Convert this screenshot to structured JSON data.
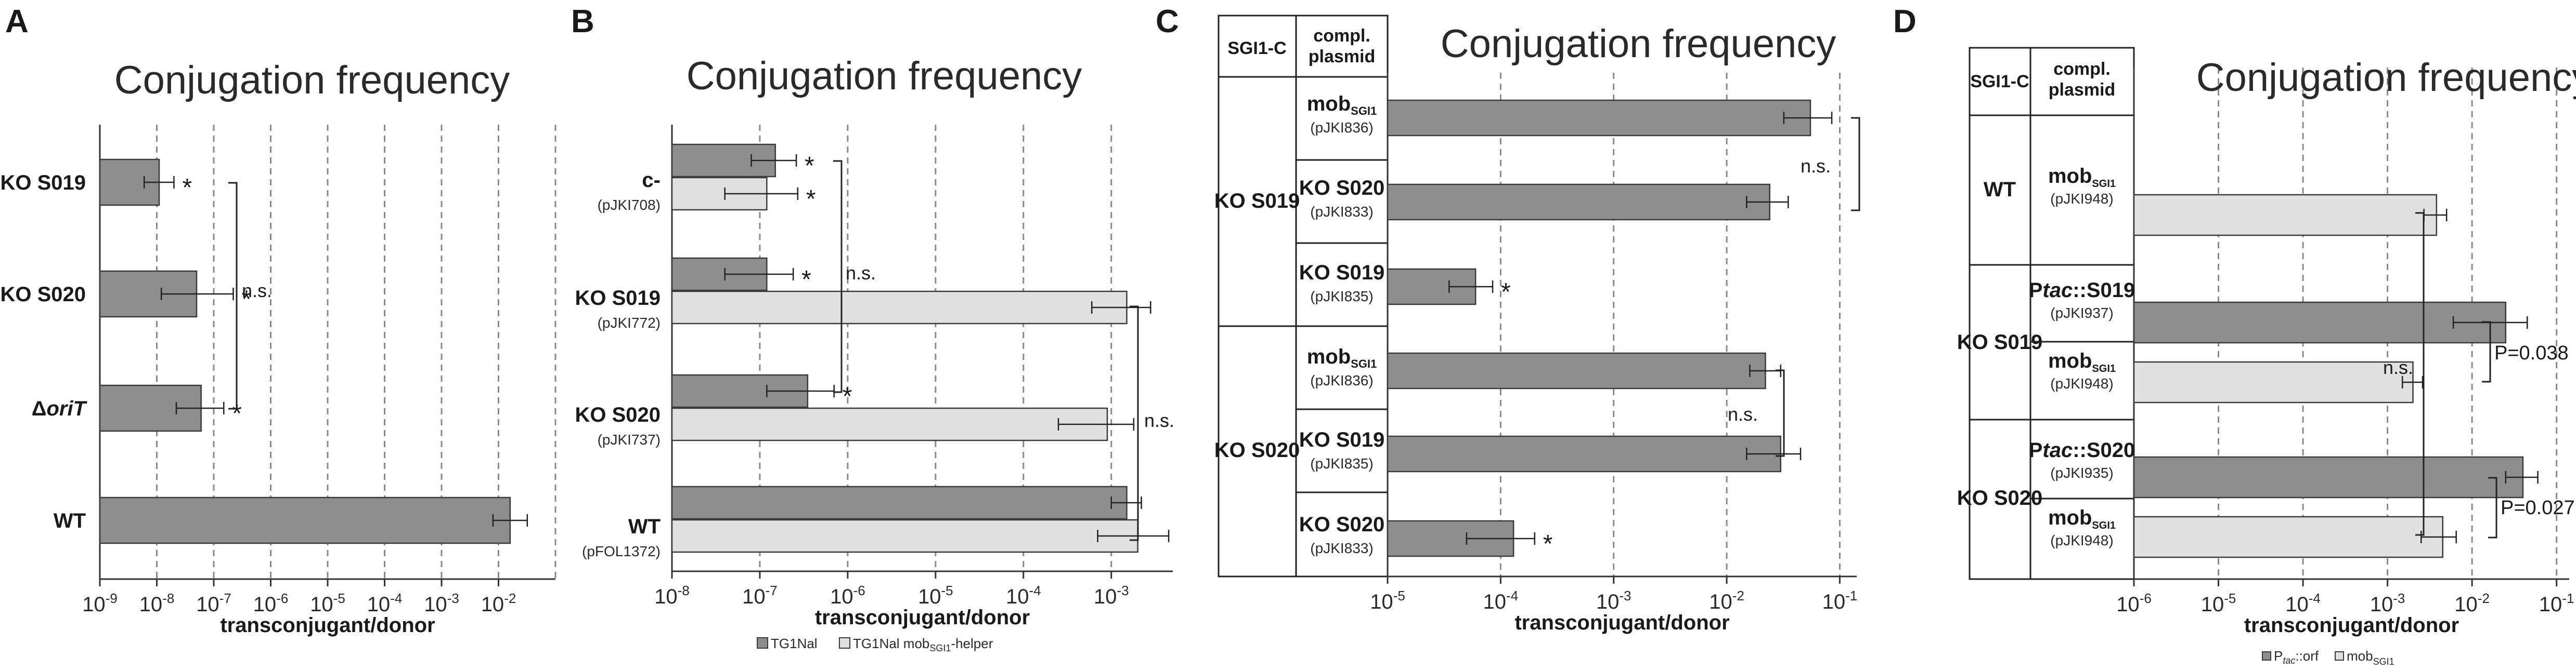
{
  "colors": {
    "dark_bar": "#8e8e8e",
    "light_bar": "#e1e1e1",
    "bar_stroke": "#3a3a3a",
    "axis": "#333333",
    "grid": "#8a8a8a"
  },
  "chart_data": [
    {
      "panel": "A",
      "type": "bar",
      "orientation": "horizontal",
      "x_scale": "log10",
      "title": "Conjugation frequency",
      "xlabel": "transconjugant/donor",
      "xlim_exp": [
        -9,
        -1
      ],
      "tick_labels": [
        "10-9",
        "10-8",
        "10-7",
        "10-6",
        "10-5",
        "10-4",
        "10-3",
        "10-2"
      ],
      "rows": [
        {
          "label": "KO S019",
          "bars": [
            {
              "series": "dark",
              "value": 1.1e-08,
              "err_low": 6e-09,
              "err_high": 2e-08,
              "mark": "*"
            }
          ]
        },
        {
          "label": "KO S020",
          "bars": [
            {
              "series": "dark",
              "value": 5e-08,
              "err_low": 1.2e-08,
              "err_high": 2.2e-07,
              "mark": "*"
            }
          ]
        },
        {
          "label": "ΔoriT",
          "italic_part": "oriT",
          "bars": [
            {
              "series": "dark",
              "value": 6e-08,
              "err_low": 2.2e-08,
              "err_high": 1.5e-07,
              "mark": "*"
            }
          ]
        },
        {
          "label": "WT",
          "bars": [
            {
              "series": "dark",
              "value": 0.016,
              "err_low": 0.008,
              "err_high": 0.032,
              "mark": ""
            }
          ]
        }
      ],
      "brackets": [
        {
          "text": "n.s."
        }
      ]
    },
    {
      "panel": "B",
      "type": "bar",
      "orientation": "horizontal",
      "x_scale": "log10",
      "title": "Conjugation frequency",
      "xlabel": "transconjugant/donor",
      "xlim_exp": [
        -8,
        -2.3
      ],
      "tick_labels": [
        "10-8",
        "10-7",
        "10-6",
        "10-5",
        "10-4",
        "10-3"
      ],
      "legend": [
        "TG1Nal",
        "TG1Nal mobSGI1-helper"
      ],
      "rows": [
        {
          "label": "c-",
          "sublabel": "(pJKI708)",
          "bars": [
            {
              "series": "dark",
              "value": 1.5e-07,
              "err_low": 8e-08,
              "err_high": 2.6e-07,
              "mark": "*"
            },
            {
              "series": "light",
              "value": 1.2e-07,
              "err_low": 4e-08,
              "err_high": 2.7e-07,
              "mark": "*"
            }
          ]
        },
        {
          "label": "KO S019",
          "sublabel": "(pJKI772)",
          "bars": [
            {
              "series": "dark",
              "value": 1.2e-07,
              "err_low": 4e-08,
              "err_high": 2.4e-07,
              "mark": "*"
            },
            {
              "series": "light",
              "value": 0.0015,
              "err_low": 0.0006,
              "err_high": 0.0028,
              "mark": ""
            }
          ]
        },
        {
          "label": "KO S020",
          "sublabel": "(pJKI737)",
          "bars": [
            {
              "series": "dark",
              "value": 3.5e-07,
              "err_low": 1.2e-07,
              "err_high": 7e-07,
              "mark": "*"
            },
            {
              "series": "light",
              "value": 0.0009,
              "err_low": 0.00025,
              "err_high": 0.0018,
              "mark": ""
            }
          ]
        },
        {
          "label": "WT",
          "sublabel": "(pFOL1372)",
          "bars": [
            {
              "series": "dark",
              "value": 0.0015,
              "err_low": 0.001,
              "err_high": 0.0022,
              "mark": ""
            },
            {
              "series": "light",
              "value": 0.002,
              "err_low": 0.0007,
              "err_high": 0.0045,
              "mark": ""
            }
          ]
        }
      ],
      "brackets": [
        {
          "text": "n.s."
        },
        {
          "text": "n.s."
        }
      ]
    },
    {
      "panel": "C",
      "type": "bar",
      "orientation": "horizontal",
      "x_scale": "log10",
      "title": "Conjugation frequency",
      "xlabel": "transconjugant/donor",
      "xlim_exp": [
        -5,
        -0.85
      ],
      "tick_labels": [
        "10-5",
        "10-4",
        "10-3",
        "10-2",
        "10-1"
      ],
      "table_headers": [
        "SGI1-C",
        "compl. plasmid"
      ],
      "groups": [
        "KO S019",
        "KO S020"
      ],
      "rows": [
        {
          "group": "KO S019",
          "label": "mobSGI1",
          "sublabel": "(pJKI836)",
          "bars": [
            {
              "series": "dark",
              "value": 0.055,
              "err_low": 0.032,
              "err_high": 0.085,
              "mark": ""
            }
          ]
        },
        {
          "group": "KO S019",
          "label": "KO S020",
          "sublabel": "(pJKI833)",
          "bars": [
            {
              "series": "dark",
              "value": 0.024,
              "err_low": 0.015,
              "err_high": 0.035,
              "mark": ""
            }
          ]
        },
        {
          "group": "KO S019",
          "label": "KO S019",
          "sublabel": "(pJKI835)",
          "bars": [
            {
              "series": "dark",
              "value": 6e-05,
              "err_low": 3.5e-05,
              "err_high": 8.5e-05,
              "mark": "*"
            }
          ]
        },
        {
          "group": "KO S020",
          "label": "mobSGI1",
          "sublabel": "(pJKI836)",
          "bars": [
            {
              "series": "dark",
              "value": 0.022,
              "err_low": 0.016,
              "err_high": 0.03,
              "mark": ""
            }
          ]
        },
        {
          "group": "KO S020",
          "label": "KO S019",
          "sublabel": "(pJKI835)",
          "bars": [
            {
              "series": "dark",
              "value": 0.03,
              "err_low": 0.015,
              "err_high": 0.045,
              "mark": ""
            }
          ]
        },
        {
          "group": "KO S020",
          "label": "KO S020",
          "sublabel": "(pJKI833)",
          "bars": [
            {
              "series": "dark",
              "value": 0.00013,
              "err_low": 5e-05,
              "err_high": 0.0002,
              "mark": "*"
            }
          ]
        }
      ],
      "brackets": [
        {
          "text": "n.s."
        },
        {
          "text": "n.s."
        }
      ]
    },
    {
      "panel": "D",
      "type": "bar",
      "orientation": "horizontal",
      "x_scale": "log10",
      "title": "Conjugation frequency",
      "xlabel": "transconjugant/donor",
      "xlim_exp": [
        -6,
        -0.85
      ],
      "tick_labels": [
        "10-6",
        "10-5",
        "10-4",
        "10-3",
        "10-2",
        "10-1"
      ],
      "table_headers": [
        "SGI1-C",
        "compl. plasmid"
      ],
      "groups": [
        "WT",
        "KO S019",
        "KO S020"
      ],
      "legend": [
        "Ptac::orf",
        "mobSGI1"
      ],
      "rows": [
        {
          "group": "WT",
          "label": "mobSGI1",
          "sublabel": "(pJKI948)",
          "bars": [
            {
              "series": "light",
              "value": 0.0038,
              "err_low": 0.0027,
              "err_high": 0.005,
              "mark": ""
            }
          ]
        },
        {
          "group": "KO S019",
          "label": "Ptac::S019",
          "sublabel": "(pJKI937)",
          "bars": [
            {
              "series": "dark",
              "value": 0.025,
              "err_low": 0.006,
              "err_high": 0.045,
              "mark": ""
            }
          ]
        },
        {
          "group": "KO S019",
          "label": "mobSGI1",
          "sublabel": "(pJKI948)",
          "bars": [
            {
              "series": "light",
              "value": 0.002,
              "err_low": 0.0015,
              "err_high": 0.0026,
              "mark": ""
            }
          ]
        },
        {
          "group": "KO S020",
          "label": "Ptac::S020",
          "sublabel": "(pJKI935)",
          "bars": [
            {
              "series": "dark",
              "value": 0.04,
              "err_low": 0.025,
              "err_high": 0.06,
              "mark": ""
            }
          ]
        },
        {
          "group": "KO S020",
          "label": "mobSGI1",
          "sublabel": "(pJKI948)",
          "bars": [
            {
              "series": "light",
              "value": 0.0045,
              "err_low": 0.0025,
              "err_high": 0.0065,
              "mark": ""
            }
          ]
        }
      ],
      "brackets": [
        {
          "text": "n.s."
        },
        {
          "text": "P=0.038"
        },
        {
          "text": "P=0.027"
        }
      ]
    }
  ]
}
